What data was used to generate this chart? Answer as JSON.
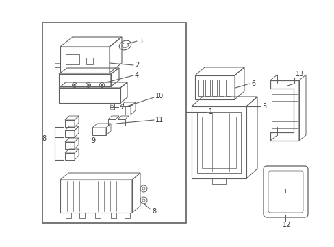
{
  "bg_color": "#ffffff",
  "line_color": "#606060",
  "fig_width": 4.89,
  "fig_height": 3.6,
  "dpi": 100
}
